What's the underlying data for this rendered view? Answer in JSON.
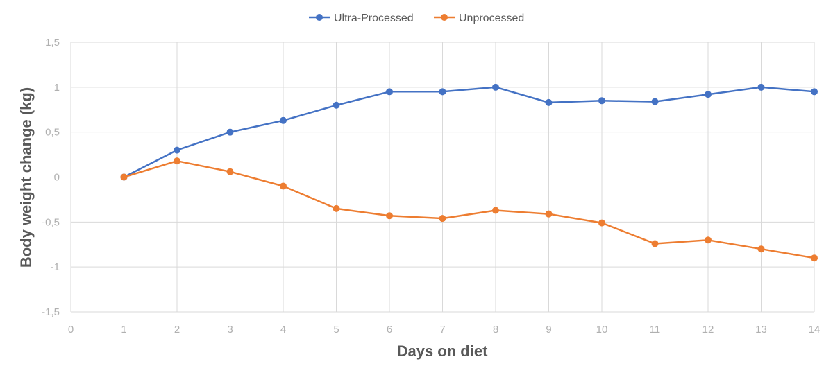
{
  "chart_data": {
    "type": "line",
    "xlabel": "Days on diet",
    "ylabel": "Body weight change (kg)",
    "xlim": [
      0,
      14
    ],
    "ylim": [
      -1.5,
      1.5
    ],
    "x_ticks": [
      "0",
      "1",
      "2",
      "3",
      "4",
      "5",
      "6",
      "7",
      "8",
      "9",
      "10",
      "11",
      "12",
      "13",
      "14"
    ],
    "y_ticks": [
      "1,5",
      "1",
      "0,5",
      "0",
      "-0,5",
      "-1",
      "-1,5"
    ],
    "grid": true,
    "legend_position": "top-center",
    "series": [
      {
        "name": "Ultra-Processed",
        "color": "#4472C4",
        "x": [
          1,
          2,
          3,
          4,
          5,
          6,
          7,
          8,
          9,
          10,
          11,
          12,
          13,
          14
        ],
        "y": [
          0,
          0.3,
          0.5,
          0.63,
          0.8,
          0.95,
          0.95,
          1.0,
          0.83,
          0.85,
          0.84,
          0.92,
          1.0,
          0.95
        ]
      },
      {
        "name": "Unprocessed",
        "color": "#ED7D31",
        "x": [
          1,
          2,
          3,
          4,
          5,
          6,
          7,
          8,
          9,
          10,
          11,
          12,
          13,
          14
        ],
        "y": [
          0,
          0.18,
          0.06,
          -0.1,
          -0.35,
          -0.43,
          -0.46,
          -0.37,
          -0.41,
          -0.51,
          -0.74,
          -0.7,
          -0.8,
          -0.9
        ]
      }
    ]
  }
}
